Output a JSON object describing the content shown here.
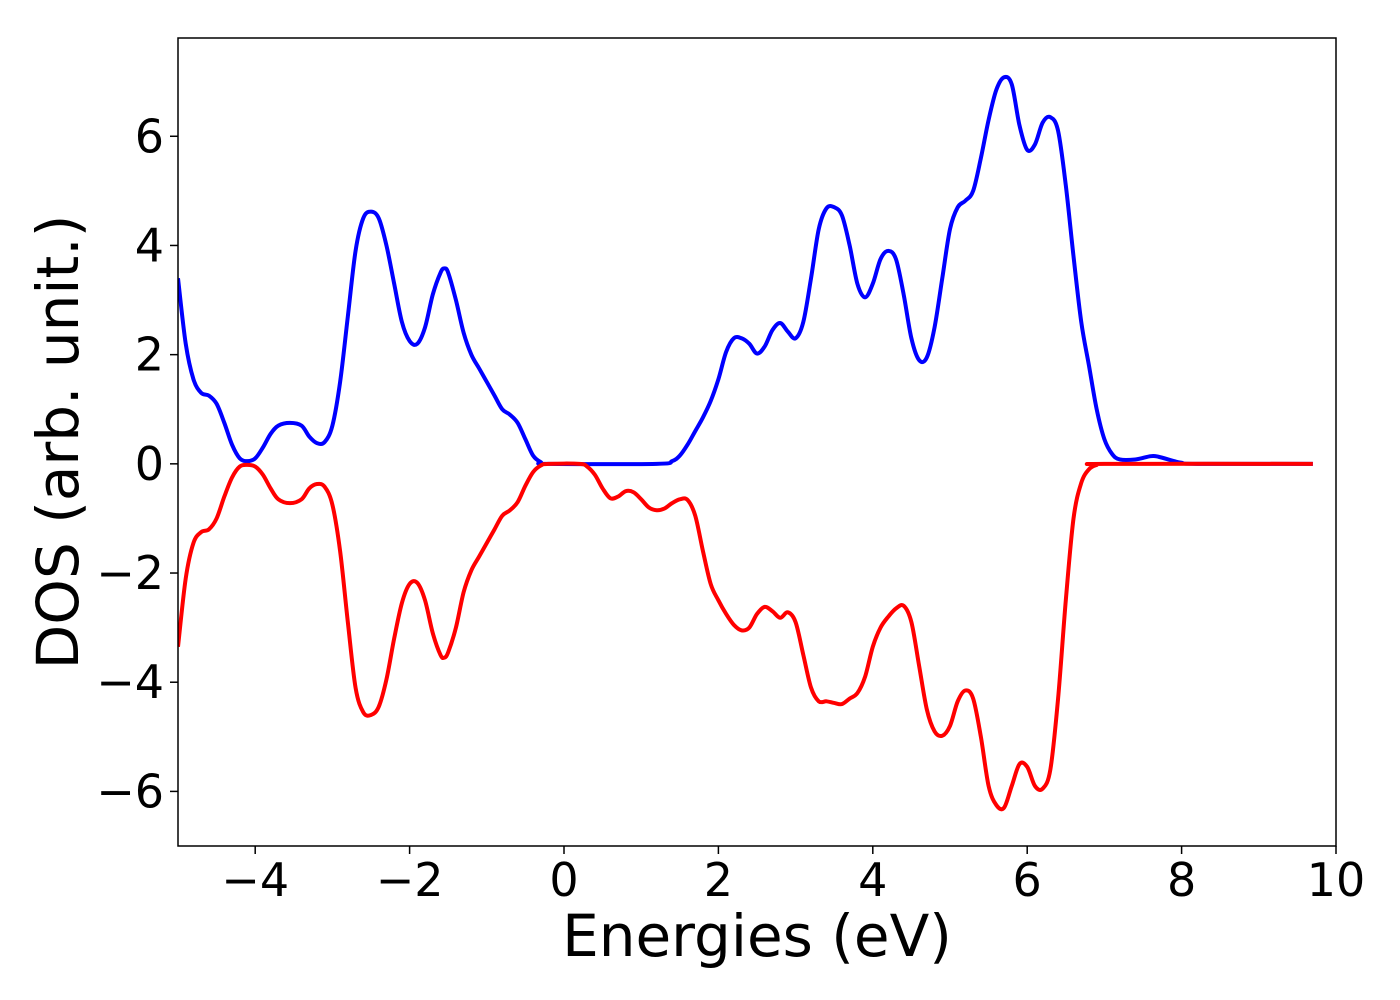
{
  "chart_data": {
    "type": "line",
    "title": "",
    "xlabel": "Energies (eV)",
    "ylabel": "DOS (arb. unit.)",
    "xlim": [
      -5,
      10
    ],
    "ylim": [
      -7,
      7.8
    ],
    "xticks": [
      -4,
      -2,
      0,
      2,
      4,
      6,
      8,
      10
    ],
    "xtick_labels": [
      "−4",
      "−2",
      "0",
      "2",
      "4",
      "6",
      "8",
      "10"
    ],
    "yticks": [
      -6,
      -4,
      -2,
      0,
      2,
      4,
      6
    ],
    "ytick_labels": [
      "−6",
      "−4",
      "−2",
      "0",
      "2",
      "4",
      "6"
    ],
    "grid": false,
    "legend": "none",
    "series": [
      {
        "color": "#0000ff",
        "points": [
          [
            -5.0,
            3.4
          ],
          [
            -4.9,
            2.2
          ],
          [
            -4.8,
            1.55
          ],
          [
            -4.7,
            1.3
          ],
          [
            -4.6,
            1.25
          ],
          [
            -4.5,
            1.1
          ],
          [
            -4.4,
            0.75
          ],
          [
            -4.3,
            0.35
          ],
          [
            -4.2,
            0.1
          ],
          [
            -4.1,
            0.05
          ],
          [
            -4.0,
            0.1
          ],
          [
            -3.9,
            0.3
          ],
          [
            -3.8,
            0.55
          ],
          [
            -3.7,
            0.7
          ],
          [
            -3.55,
            0.75
          ],
          [
            -3.4,
            0.7
          ],
          [
            -3.3,
            0.5
          ],
          [
            -3.2,
            0.38
          ],
          [
            -3.1,
            0.4
          ],
          [
            -3.0,
            0.7
          ],
          [
            -2.9,
            1.5
          ],
          [
            -2.8,
            2.7
          ],
          [
            -2.7,
            3.9
          ],
          [
            -2.6,
            4.5
          ],
          [
            -2.5,
            4.62
          ],
          [
            -2.4,
            4.5
          ],
          [
            -2.3,
            4.0
          ],
          [
            -2.2,
            3.3
          ],
          [
            -2.1,
            2.6
          ],
          [
            -2.0,
            2.25
          ],
          [
            -1.9,
            2.2
          ],
          [
            -1.8,
            2.5
          ],
          [
            -1.7,
            3.1
          ],
          [
            -1.6,
            3.5
          ],
          [
            -1.55,
            3.58
          ],
          [
            -1.5,
            3.5
          ],
          [
            -1.4,
            3.0
          ],
          [
            -1.3,
            2.4
          ],
          [
            -1.2,
            2.0
          ],
          [
            -1.1,
            1.75
          ],
          [
            -1.0,
            1.5
          ],
          [
            -0.9,
            1.25
          ],
          [
            -0.8,
            1.0
          ],
          [
            -0.7,
            0.9
          ],
          [
            -0.6,
            0.75
          ],
          [
            -0.5,
            0.45
          ],
          [
            -0.4,
            0.15
          ],
          [
            -0.3,
            0.03
          ],
          [
            -0.2,
            0.0
          ],
          [
            1.2,
            0.0
          ],
          [
            1.4,
            0.05
          ],
          [
            1.5,
            0.15
          ],
          [
            1.6,
            0.35
          ],
          [
            1.7,
            0.6
          ],
          [
            1.8,
            0.85
          ],
          [
            1.9,
            1.15
          ],
          [
            2.0,
            1.55
          ],
          [
            2.1,
            2.05
          ],
          [
            2.2,
            2.3
          ],
          [
            2.3,
            2.3
          ],
          [
            2.4,
            2.2
          ],
          [
            2.5,
            2.02
          ],
          [
            2.6,
            2.15
          ],
          [
            2.7,
            2.45
          ],
          [
            2.8,
            2.58
          ],
          [
            2.9,
            2.42
          ],
          [
            3.0,
            2.3
          ],
          [
            3.1,
            2.6
          ],
          [
            3.2,
            3.4
          ],
          [
            3.3,
            4.3
          ],
          [
            3.4,
            4.68
          ],
          [
            3.5,
            4.7
          ],
          [
            3.6,
            4.55
          ],
          [
            3.7,
            4.0
          ],
          [
            3.8,
            3.3
          ],
          [
            3.9,
            3.05
          ],
          [
            4.0,
            3.3
          ],
          [
            4.1,
            3.75
          ],
          [
            4.2,
            3.9
          ],
          [
            4.3,
            3.75
          ],
          [
            4.4,
            3.1
          ],
          [
            4.5,
            2.3
          ],
          [
            4.6,
            1.9
          ],
          [
            4.7,
            1.95
          ],
          [
            4.8,
            2.5
          ],
          [
            4.9,
            3.4
          ],
          [
            5.0,
            4.3
          ],
          [
            5.1,
            4.7
          ],
          [
            5.2,
            4.82
          ],
          [
            5.3,
            5.0
          ],
          [
            5.4,
            5.6
          ],
          [
            5.5,
            6.3
          ],
          [
            5.6,
            6.85
          ],
          [
            5.7,
            7.08
          ],
          [
            5.8,
            6.95
          ],
          [
            5.9,
            6.2
          ],
          [
            6.0,
            5.75
          ],
          [
            6.1,
            5.85
          ],
          [
            6.2,
            6.25
          ],
          [
            6.3,
            6.35
          ],
          [
            6.4,
            6.1
          ],
          [
            6.5,
            5.1
          ],
          [
            6.6,
            3.8
          ],
          [
            6.7,
            2.6
          ],
          [
            6.8,
            1.8
          ],
          [
            6.9,
            1.0
          ],
          [
            7.0,
            0.45
          ],
          [
            7.1,
            0.18
          ],
          [
            7.2,
            0.08
          ],
          [
            7.4,
            0.08
          ],
          [
            7.6,
            0.14
          ],
          [
            7.7,
            0.13
          ],
          [
            7.9,
            0.05
          ],
          [
            8.0,
            0.02
          ],
          [
            8.2,
            0.0
          ],
          [
            9.7,
            0.0
          ]
        ]
      },
      {
        "color": "#ff0000",
        "points": [
          [
            -5.0,
            -3.35
          ],
          [
            -4.9,
            -2.1
          ],
          [
            -4.8,
            -1.45
          ],
          [
            -4.7,
            -1.25
          ],
          [
            -4.6,
            -1.2
          ],
          [
            -4.5,
            -1.0
          ],
          [
            -4.4,
            -0.6
          ],
          [
            -4.3,
            -0.25
          ],
          [
            -4.2,
            -0.05
          ],
          [
            -4.1,
            -0.02
          ],
          [
            -4.0,
            -0.05
          ],
          [
            -3.9,
            -0.2
          ],
          [
            -3.8,
            -0.45
          ],
          [
            -3.7,
            -0.65
          ],
          [
            -3.55,
            -0.72
          ],
          [
            -3.4,
            -0.65
          ],
          [
            -3.3,
            -0.45
          ],
          [
            -3.2,
            -0.37
          ],
          [
            -3.1,
            -0.42
          ],
          [
            -3.0,
            -0.75
          ],
          [
            -2.9,
            -1.6
          ],
          [
            -2.8,
            -2.9
          ],
          [
            -2.7,
            -4.1
          ],
          [
            -2.6,
            -4.55
          ],
          [
            -2.5,
            -4.6
          ],
          [
            -2.4,
            -4.45
          ],
          [
            -2.3,
            -3.95
          ],
          [
            -2.2,
            -3.2
          ],
          [
            -2.1,
            -2.55
          ],
          [
            -2.0,
            -2.2
          ],
          [
            -1.9,
            -2.18
          ],
          [
            -1.8,
            -2.5
          ],
          [
            -1.7,
            -3.1
          ],
          [
            -1.6,
            -3.5
          ],
          [
            -1.55,
            -3.55
          ],
          [
            -1.5,
            -3.45
          ],
          [
            -1.4,
            -3.0
          ],
          [
            -1.3,
            -2.35
          ],
          [
            -1.2,
            -1.95
          ],
          [
            -1.1,
            -1.7
          ],
          [
            -1.0,
            -1.45
          ],
          [
            -0.9,
            -1.2
          ],
          [
            -0.8,
            -0.95
          ],
          [
            -0.7,
            -0.85
          ],
          [
            -0.6,
            -0.7
          ],
          [
            -0.5,
            -0.4
          ],
          [
            -0.4,
            -0.15
          ],
          [
            -0.3,
            -0.03
          ],
          [
            -0.2,
            0.0
          ],
          [
            0.2,
            0.0
          ],
          [
            0.3,
            -0.05
          ],
          [
            0.4,
            -0.2
          ],
          [
            0.5,
            -0.45
          ],
          [
            0.6,
            -0.63
          ],
          [
            0.7,
            -0.6
          ],
          [
            0.8,
            -0.5
          ],
          [
            0.9,
            -0.52
          ],
          [
            1.0,
            -0.65
          ],
          [
            1.1,
            -0.8
          ],
          [
            1.2,
            -0.85
          ],
          [
            1.3,
            -0.82
          ],
          [
            1.4,
            -0.72
          ],
          [
            1.5,
            -0.65
          ],
          [
            1.6,
            -0.66
          ],
          [
            1.7,
            -0.95
          ],
          [
            1.8,
            -1.6
          ],
          [
            1.9,
            -2.2
          ],
          [
            2.0,
            -2.5
          ],
          [
            2.1,
            -2.75
          ],
          [
            2.2,
            -2.95
          ],
          [
            2.3,
            -3.05
          ],
          [
            2.4,
            -3.0
          ],
          [
            2.5,
            -2.75
          ],
          [
            2.6,
            -2.62
          ],
          [
            2.7,
            -2.7
          ],
          [
            2.8,
            -2.82
          ],
          [
            2.9,
            -2.72
          ],
          [
            3.0,
            -2.9
          ],
          [
            3.1,
            -3.5
          ],
          [
            3.2,
            -4.1
          ],
          [
            3.3,
            -4.35
          ],
          [
            3.4,
            -4.35
          ],
          [
            3.5,
            -4.38
          ],
          [
            3.6,
            -4.4
          ],
          [
            3.7,
            -4.3
          ],
          [
            3.8,
            -4.2
          ],
          [
            3.9,
            -3.9
          ],
          [
            4.0,
            -3.35
          ],
          [
            4.1,
            -3.0
          ],
          [
            4.2,
            -2.8
          ],
          [
            4.3,
            -2.65
          ],
          [
            4.4,
            -2.6
          ],
          [
            4.5,
            -2.9
          ],
          [
            4.6,
            -3.7
          ],
          [
            4.7,
            -4.5
          ],
          [
            4.8,
            -4.9
          ],
          [
            4.9,
            -4.98
          ],
          [
            5.0,
            -4.8
          ],
          [
            5.1,
            -4.35
          ],
          [
            5.2,
            -4.15
          ],
          [
            5.3,
            -4.3
          ],
          [
            5.4,
            -5.0
          ],
          [
            5.5,
            -5.9
          ],
          [
            5.6,
            -6.25
          ],
          [
            5.7,
            -6.3
          ],
          [
            5.8,
            -5.9
          ],
          [
            5.9,
            -5.5
          ],
          [
            6.0,
            -5.55
          ],
          [
            6.1,
            -5.9
          ],
          [
            6.2,
            -5.95
          ],
          [
            6.3,
            -5.6
          ],
          [
            6.4,
            -4.3
          ],
          [
            6.5,
            -2.5
          ],
          [
            6.6,
            -1.0
          ],
          [
            6.7,
            -0.35
          ],
          [
            6.8,
            -0.1
          ],
          [
            6.9,
            -0.02
          ],
          [
            7.0,
            0.0
          ],
          [
            9.7,
            0.0
          ]
        ]
      }
    ]
  }
}
